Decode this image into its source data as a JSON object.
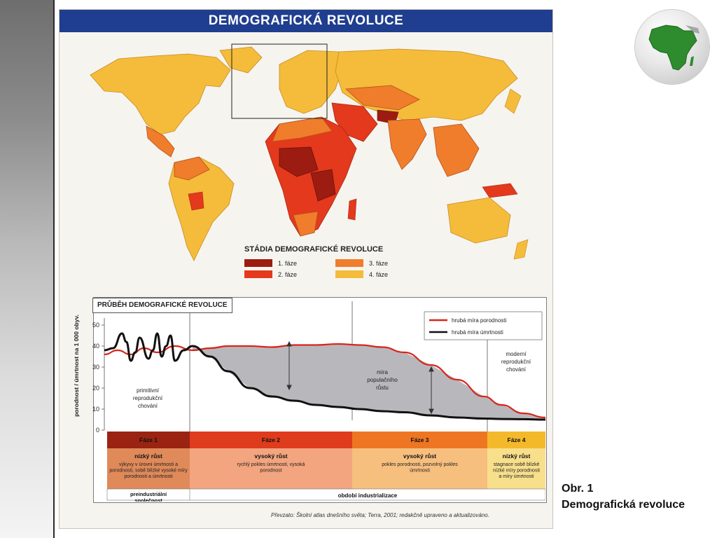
{
  "poster": {
    "title": "DEMOGRAFICKÁ REVOLUCE",
    "legend": {
      "title": "STÁDIA DEMOGRAFICKÉ REVOLUCE",
      "items": [
        {
          "label": "1. fáze",
          "color": "#9c1c12"
        },
        {
          "label": "2. fáze",
          "color": "#e4391c"
        },
        {
          "label": "3. fáze",
          "color": "#ef7d2c"
        },
        {
          "label": "4. fáze",
          "color": "#f4bc3a"
        }
      ]
    },
    "graph_title": "PRŮBĚH DEMOGRAFICKÉ REVOLUCE",
    "credit": "Převzato: Školní atlas dnešního světa; Terra, 2001; redakčně upraveno a aktualizováno."
  },
  "chart_data": {
    "type": "line",
    "ylabel": "porodnost / úmrtnost na 1 000 obyv.",
    "ylim": [
      0,
      50
    ],
    "yticks": [
      0,
      10,
      20,
      30,
      40,
      50
    ],
    "legend": [
      "hrubá míra porodnosti",
      "hrubá míra úmrtnosti"
    ],
    "series": [
      {
        "name": "hrubá míra porodnosti",
        "color": "#d8251b",
        "x": [
          0,
          3,
          6,
          9,
          12,
          16,
          20,
          24,
          28,
          33,
          38,
          43,
          48,
          53,
          58,
          63,
          68,
          74,
          80,
          86,
          90,
          95,
          100
        ],
        "y": [
          36,
          38,
          36,
          39,
          37,
          40,
          38,
          39,
          40,
          40,
          39.5,
          40.5,
          40.5,
          41,
          40.5,
          39.5,
          37,
          31,
          24,
          16,
          12,
          8,
          6
        ]
      },
      {
        "name": "hrubá míra úmrtnosti",
        "color": "#111111",
        "x": [
          0,
          2,
          4,
          5,
          6,
          7,
          8,
          10,
          11,
          12,
          13,
          14,
          15,
          16,
          18,
          20,
          24,
          28,
          33,
          38,
          43,
          48,
          53,
          58,
          63,
          68,
          74,
          80,
          86,
          90,
          95,
          100
        ],
        "y": [
          38,
          39,
          46,
          42,
          33,
          37,
          44,
          34,
          38,
          46,
          35,
          40,
          45,
          33,
          38,
          40,
          35,
          28,
          20,
          16,
          14,
          12,
          11,
          10,
          9,
          8.5,
          7,
          6,
          5.5,
          5.3,
          5.2,
          5
        ]
      }
    ],
    "annotations": {
      "primitive": "primitivní reprodukční chování",
      "growth": "míra populačního růstu",
      "modern": "moderní reprodukční chování"
    },
    "phases": [
      {
        "label": "Fáze 1",
        "growth": "nízký růst",
        "desc": "výkyvy v úrovni úmrtnosti a porodnosti, sobě blízké vysoké míry porodnosti a úmrtnosti",
        "header_color": "#9a2312",
        "body_color": "#e08a5a"
      },
      {
        "label": "Fáze 2",
        "growth": "vysoký růst",
        "desc": "rychlý pokles úmrtnosti, vysoká porodnost",
        "header_color": "#df3b1d",
        "body_color": "#f2a57f"
      },
      {
        "label": "Fáze 3",
        "growth": "vysoký růst",
        "desc": "pokles porodnosti, pozvolný pokles úmrtnosti",
        "header_color": "#ee7622",
        "body_color": "#f7bf7e"
      },
      {
        "label": "Fáze 4",
        "growth": "nízký růst",
        "desc": "stagnace sobě blízké nízké míry porodnosti a míry úmrtnosti",
        "header_color": "#f4b92b",
        "body_color": "#f8df8c"
      }
    ],
    "eras": [
      "preindustriální společnost",
      "období industrializace"
    ]
  },
  "caption": {
    "line1": "Obr. 1",
    "line2": "Demografická revoluce"
  },
  "globe": {
    "icon": "africa-globe-icon",
    "land_color": "#2e8b2e"
  }
}
